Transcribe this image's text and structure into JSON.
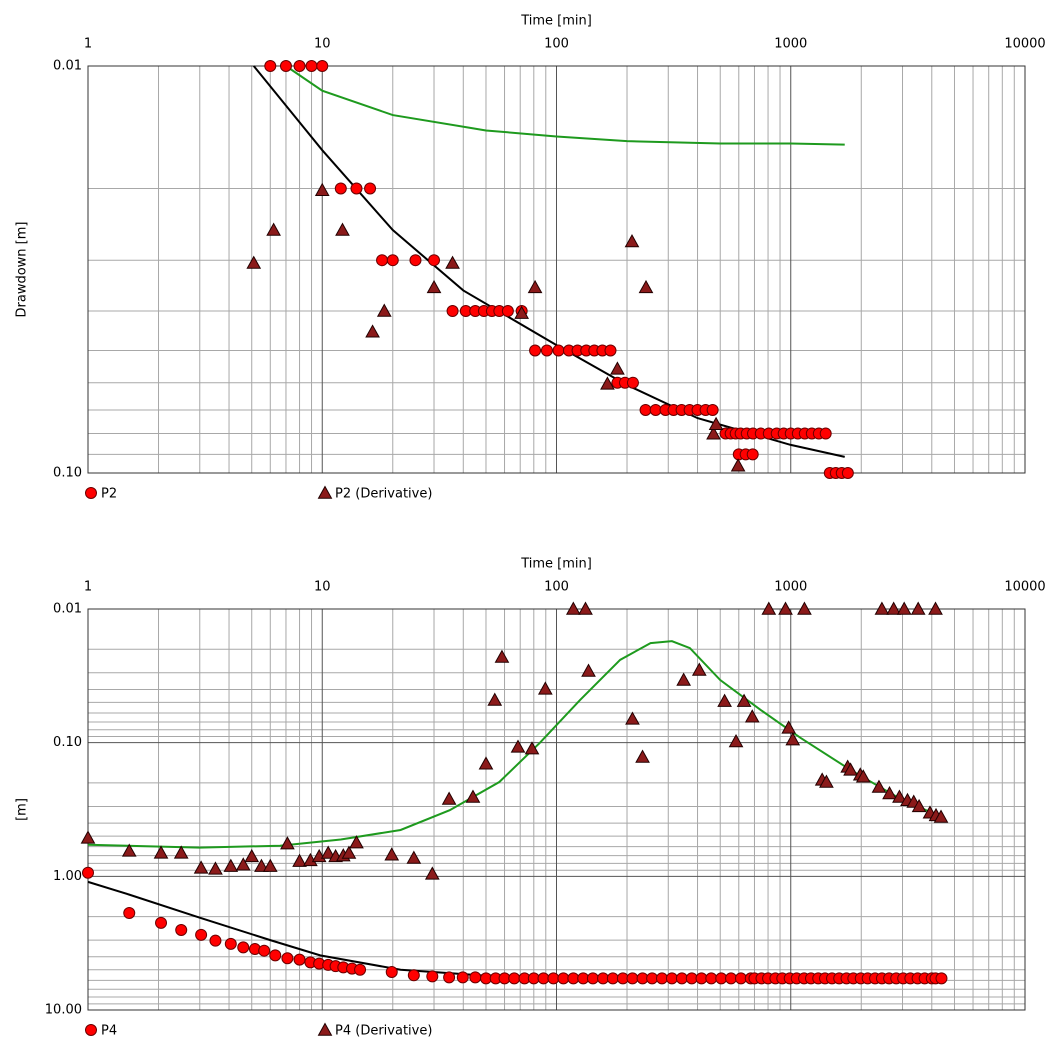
{
  "chart_data": [
    {
      "type": "scatter",
      "xlabel": "Time [min]",
      "ylabel": "Drawdown [m]",
      "xlog": true,
      "ylog": true,
      "y_inverted": true,
      "grid": true,
      "legend": "below",
      "xlim": [
        1,
        10000
      ],
      "xticks": [
        1,
        10,
        100,
        1000,
        10000
      ],
      "ylim": [
        0.01,
        0.1
      ],
      "yticks": [
        0.01,
        {
          "value": 0.1,
          "label": "0.10"
        }
      ],
      "series": [
        {
          "name": "P2",
          "color": "#ff0000",
          "marker": "circle",
          "x": [
            6,
            7,
            8,
            9,
            10,
            12,
            14,
            16,
            18,
            20,
            25,
            30,
            36,
            41,
            45,
            49,
            53,
            57,
            62,
            71,
            81,
            91,
            102,
            113,
            123,
            134,
            145,
            157,
            170,
            182,
            196,
            212,
            240,
            265,
            292,
            316,
            342,
            370,
            400,
            433,
            464,
            527,
            554,
            582,
            611,
            649,
            690,
            745,
            806,
            871,
            933,
            1000,
            1072,
            1148,
            1230,
            1318,
            1410,
            600,
            642,
            688,
            1468,
            1557,
            1651,
            1753
          ],
          "values": [
            0.01,
            0.01,
            0.01,
            0.01,
            0.01,
            0.02,
            0.02,
            0.02,
            0.03,
            0.03,
            0.03,
            0.03,
            0.04,
            0.04,
            0.04,
            0.04,
            0.04,
            0.04,
            0.04,
            0.04,
            0.05,
            0.05,
            0.05,
            0.05,
            0.05,
            0.05,
            0.05,
            0.05,
            0.05,
            0.06,
            0.06,
            0.06,
            0.07,
            0.07,
            0.07,
            0.07,
            0.07,
            0.07,
            0.07,
            0.07,
            0.07,
            0.08,
            0.08,
            0.08,
            0.08,
            0.08,
            0.08,
            0.08,
            0.08,
            0.08,
            0.08,
            0.08,
            0.08,
            0.08,
            0.08,
            0.08,
            0.08,
            0.09,
            0.09,
            0.09,
            0.1,
            0.1,
            0.1,
            0.1
          ]
        },
        {
          "name": "P2 (Derivative)",
          "color": "#8b1a1a",
          "marker": "triangle",
          "x": [
            5.1,
            6.2,
            10,
            12.2,
            16.4,
            18.4,
            30,
            36,
            71,
            81,
            165,
            182,
            210,
            241,
            468,
            480,
            596
          ],
          "values": [
            0.0305,
            0.0253,
            0.0202,
            0.0253,
            0.045,
            0.04,
            0.035,
            0.0305,
            0.0405,
            0.035,
            0.0604,
            0.0555,
            0.027,
            0.035,
            0.0801,
            0.0759,
            0.096
          ]
        },
        {
          "color": "#1e9a1e",
          "marker": "line",
          "x": [
            7,
            10,
            20,
            50,
            100,
            200,
            500,
            1000,
            1700
          ],
          "values": [
            0.01,
            0.0115,
            0.0132,
            0.0144,
            0.0149,
            0.0153,
            0.0155,
            0.0155,
            0.0156
          ]
        },
        {
          "color": "#000000",
          "marker": "line",
          "x": [
            5.1,
            10,
            20,
            40,
            100,
            200,
            400,
            1000,
            1700
          ],
          "values": [
            0.01,
            0.0161,
            0.0253,
            0.0356,
            0.0485,
            0.0608,
            0.0733,
            0.0853,
            0.0913
          ]
        }
      ]
    },
    {
      "type": "scatter",
      "xlabel": "Time [min]",
      "ylabel": "[m]",
      "xlog": true,
      "ylog": true,
      "y_inverted": true,
      "grid": true,
      "legend": "below",
      "xlim": [
        1,
        10000
      ],
      "xticks": [
        1,
        10,
        100,
        1000,
        10000
      ],
      "ylim": [
        0.01,
        10
      ],
      "yticks": [
        0.01,
        {
          "value": 0.1,
          "label": "0.10"
        },
        {
          "value": 1,
          "label": "1.00"
        },
        {
          "value": 10,
          "label": "10.00"
        }
      ],
      "series": [
        {
          "name": "P4",
          "color": "#ff0000",
          "marker": "circle",
          "x": [
            1,
            1.5,
            2.05,
            2.5,
            3.04,
            3.5,
            4.07,
            4.6,
            5.16,
            5.65,
            6.3,
            7.1,
            8,
            8.9,
            9.7,
            10.6,
            11.4,
            12.3,
            13.4,
            14.5,
            19.8,
            24.6,
            29.5,
            34.8,
            39.8,
            45,
            50,
            55,
            60,
            66,
            73,
            80,
            88,
            97,
            107,
            118,
            130,
            143,
            158,
            174,
            192,
            211,
            233,
            256,
            282,
            311,
            343,
            378,
            416,
            458,
            505,
            556,
            613,
            675,
            700,
            750,
            800,
            860,
            920,
            990,
            1060,
            1140,
            1220,
            1310,
            1400,
            1500,
            1610,
            1730,
            1850,
            1990,
            2130,
            2290,
            2450,
            2630,
            2820,
            3020,
            3240,
            3480,
            3730,
            4000,
            4150,
            4400
          ],
          "values": [
            0.94,
            1.88,
            2.23,
            2.52,
            2.74,
            3.03,
            3.2,
            3.4,
            3.5,
            3.6,
            3.9,
            4.1,
            4.2,
            4.4,
            4.5,
            4.6,
            4.7,
            4.8,
            4.9,
            5.0,
            5.2,
            5.5,
            5.6,
            5.7,
            5.7,
            5.7,
            5.8,
            5.8,
            5.8,
            5.8,
            5.8,
            5.8,
            5.8,
            5.8,
            5.8,
            5.8,
            5.8,
            5.8,
            5.8,
            5.8,
            5.8,
            5.8,
            5.8,
            5.8,
            5.8,
            5.8,
            5.8,
            5.8,
            5.8,
            5.8,
            5.8,
            5.8,
            5.8,
            5.8,
            5.8,
            5.8,
            5.8,
            5.8,
            5.8,
            5.8,
            5.8,
            5.8,
            5.8,
            5.8,
            5.8,
            5.8,
            5.8,
            5.8,
            5.8,
            5.8,
            5.8,
            5.8,
            5.8,
            5.8,
            5.8,
            5.8,
            5.8,
            5.8,
            5.8,
            5.8,
            5.8,
            5.8
          ]
        },
        {
          "name": "P4 (Derivative)",
          "color": "#8b1a1a",
          "marker": "triangle",
          "x": [
            1,
            1.5,
            2.05,
            2.5,
            3.04,
            3.5,
            4.07,
            4.6,
            5,
            5.5,
            6,
            7.1,
            8,
            8.9,
            9.7,
            10.6,
            11.4,
            12.3,
            13,
            14,
            19.8,
            24.6,
            29.5,
            34.8,
            44,
            50,
            54.5,
            58.5,
            68.5,
            78.6,
            89.6,
            118,
            137,
            133,
            211,
            233,
            349,
            407,
            522,
            584,
            632,
            685,
            806,
            950,
            980,
            1020,
            1144,
            1362,
            1420,
            1750,
            1800,
            1980,
            2040,
            2380,
            2450,
            2640,
            2750,
            2910,
            3050,
            3150,
            3350,
            3500,
            3530,
            3930,
            4150,
            4170,
            4380
          ],
          "values": [
            0.516,
            0.646,
            0.668,
            0.668,
            0.865,
            0.88,
            0.84,
            0.82,
            0.71,
            0.84,
            0.84,
            0.57,
            0.77,
            0.76,
            0.71,
            0.67,
            0.71,
            0.7,
            0.67,
            0.56,
            0.69,
            0.73,
            0.96,
            0.264,
            0.255,
            0.144,
            0.048,
            0.0229,
            0.1077,
            0.111,
            0.0396,
            0.01,
            0.0291,
            0.01,
            0.0665,
            0.128,
            0.034,
            0.0286,
            0.0489,
            0.098,
            0.0489,
            0.064,
            0.01,
            0.01,
            0.0775,
            0.095,
            0.01,
            0.19,
            0.197,
            0.152,
            0.16,
            0.174,
            0.18,
            0.215,
            0.01,
            0.24,
            0.01,
            0.255,
            0.01,
            0.27,
            0.278,
            0.01,
            0.3,
            0.335,
            0.01,
            0.35,
            0.36
          ]
        },
        {
          "color": "#1e9a1e",
          "marker": "line",
          "x": [
            1,
            3,
            6.6,
            12,
            21.6,
            35,
            57,
            85,
            126,
            187,
            252,
            311,
            371,
            500,
            745,
            1100,
            1800,
            2900,
            4400
          ],
          "values": [
            0.58,
            0.61,
            0.59,
            0.53,
            0.45,
            0.32,
            0.197,
            0.1,
            0.048,
            0.024,
            0.018,
            0.0174,
            0.0196,
            0.034,
            0.057,
            0.092,
            0.16,
            0.26,
            0.36
          ]
        },
        {
          "color": "#000000",
          "marker": "line",
          "x": [
            1,
            1.5,
            3,
            6,
            9.8,
            21.6,
            47,
            155,
            4400
          ],
          "values": [
            1.1,
            1.37,
            2.04,
            3.0,
            3.9,
            5.0,
            5.5,
            5.7,
            5.8
          ]
        }
      ]
    }
  ]
}
